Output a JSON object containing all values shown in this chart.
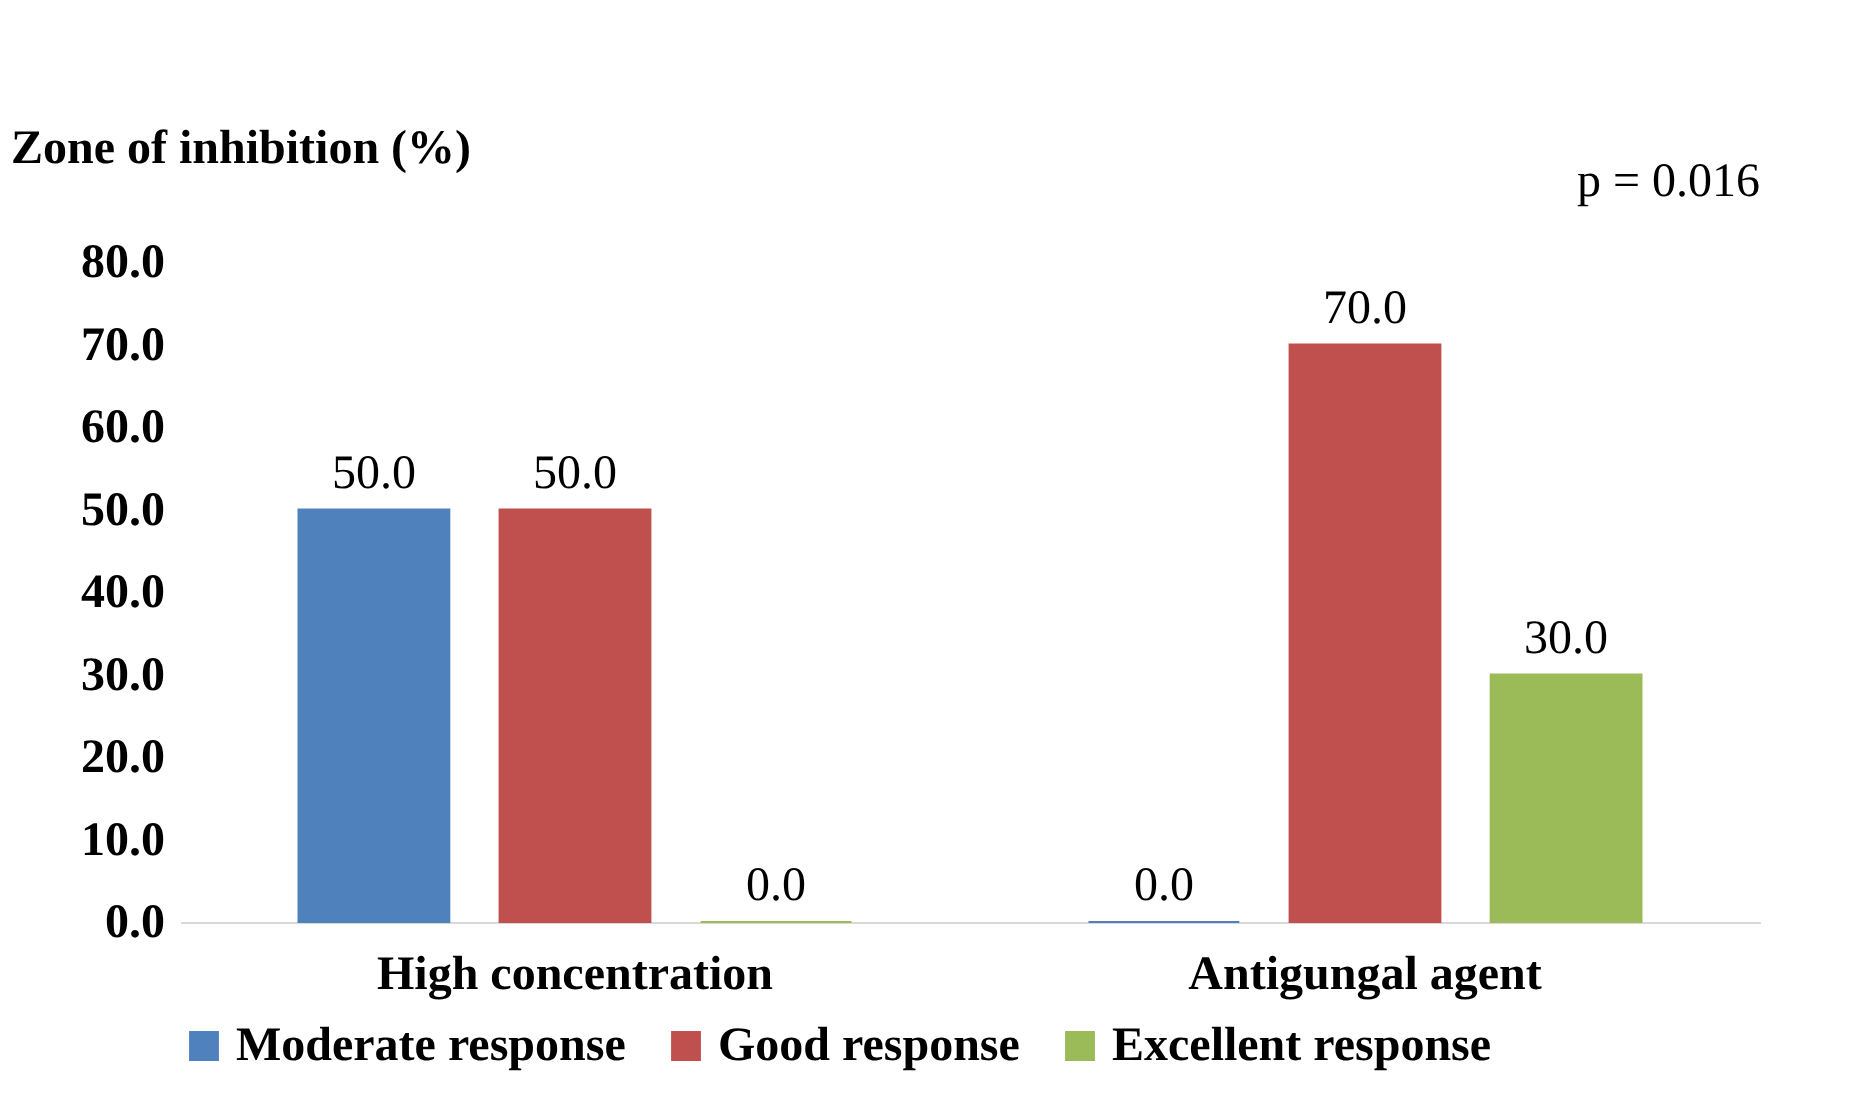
{
  "chart_data": {
    "type": "bar",
    "ylabel": "Zone of inhibition (%)",
    "annotations": [
      "p = 0.016"
    ],
    "categories": [
      "High concentration",
      "Antigungal agent"
    ],
    "series": [
      {
        "name": "Moderate response",
        "color": "#4f81bd",
        "values": [
          50,
          0
        ],
        "value_labels": [
          "50.0",
          "0.0"
        ]
      },
      {
        "name": "Good response",
        "color": "#c0504d",
        "values": [
          50,
          70
        ],
        "value_labels": [
          "50.0",
          "70.0"
        ]
      },
      {
        "name": "Excellent response",
        "color": "#9bbb59",
        "values": [
          0,
          30
        ],
        "value_labels": [
          "0.0",
          "30.0"
        ]
      }
    ],
    "ylim": [
      0,
      80
    ],
    "yticks": [
      {
        "value": 0,
        "label": "0.0"
      },
      {
        "value": 10,
        "label": "10.0"
      },
      {
        "value": 20,
        "label": "20.0"
      },
      {
        "value": 30,
        "label": "30.0"
      },
      {
        "value": 40,
        "label": "40.0"
      },
      {
        "value": 50,
        "label": "50.0"
      },
      {
        "value": 60,
        "label": "60.0"
      },
      {
        "value": 70,
        "label": "70.0"
      },
      {
        "value": 80,
        "label": "80.0"
      }
    ],
    "grid": false,
    "legend": "bottom"
  }
}
